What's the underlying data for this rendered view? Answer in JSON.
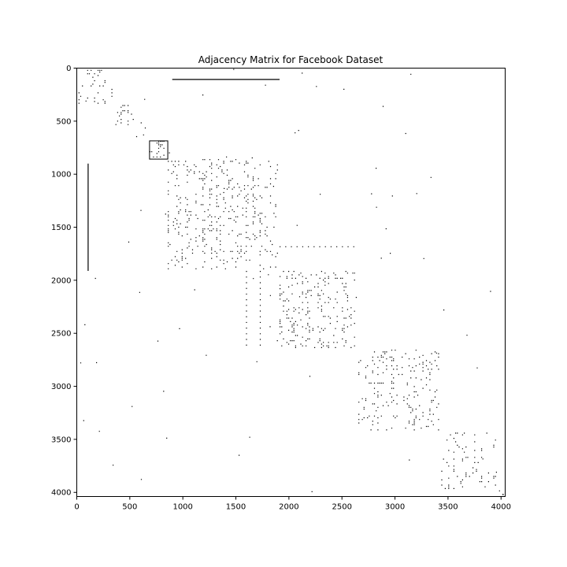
{
  "chart_data": {
    "type": "heatmap",
    "title": "Adjacency Matrix for Facebook Dataset",
    "xlabel": "",
    "ylabel": "",
    "xlim": [
      0,
      4039
    ],
    "ylim": [
      4039,
      0
    ],
    "x_ticks": [
      "0",
      "500",
      "1000",
      "1500",
      "2000",
      "2500",
      "3000",
      "3500",
      "4000"
    ],
    "y_ticks": [
      "0",
      "500",
      "1000",
      "1500",
      "2000",
      "2500",
      "3000",
      "3500",
      "4000"
    ],
    "colormap": "binary",
    "grid": false,
    "blocks": [
      {
        "x": [
          0,
          348
        ],
        "y": [
          0,
          348
        ],
        "density": 0.55
      },
      {
        "x": [
          348,
          560
        ],
        "y": [
          348,
          560
        ],
        "density": 0.6
      },
      {
        "x": [
          560,
          690
        ],
        "y": [
          560,
          690
        ],
        "density": 0.2
      },
      {
        "x": [
          686,
          858
        ],
        "y": [
          686,
          858
        ],
        "density": 0.65
      },
      {
        "x": [
          858,
          1912
        ],
        "y": [
          858,
          1912
        ],
        "density": 0.45
      },
      {
        "x": [
          1912,
          2655
        ],
        "y": [
          1912,
          2655
        ],
        "density": 0.5
      },
      {
        "x": [
          2655,
          3437
        ],
        "y": [
          2655,
          3437
        ],
        "density": 0.4
      },
      {
        "x": [
          3437,
          3981
        ],
        "y": [
          3437,
          3981
        ],
        "density": 0.25
      },
      {
        "x": [
          3981,
          4039
        ],
        "y": [
          3981,
          4039
        ],
        "density": 0.8
      }
    ],
    "segments": [
      {
        "x": [
          900,
          1912
        ],
        "y": [
          107,
          107
        ]
      },
      {
        "x": [
          107,
          107
        ],
        "y": [
          900,
          1912
        ]
      }
    ],
    "strips": [
      {
        "x": [
          1912,
          2655
        ],
        "y": [
          1684,
          1684
        ]
      },
      {
        "x": [
          1600,
          1600
        ],
        "y": [
          1912,
          2655
        ]
      },
      {
        "x": [
          1730,
          1730
        ],
        "y": [
          1912,
          2655
        ]
      }
    ]
  }
}
